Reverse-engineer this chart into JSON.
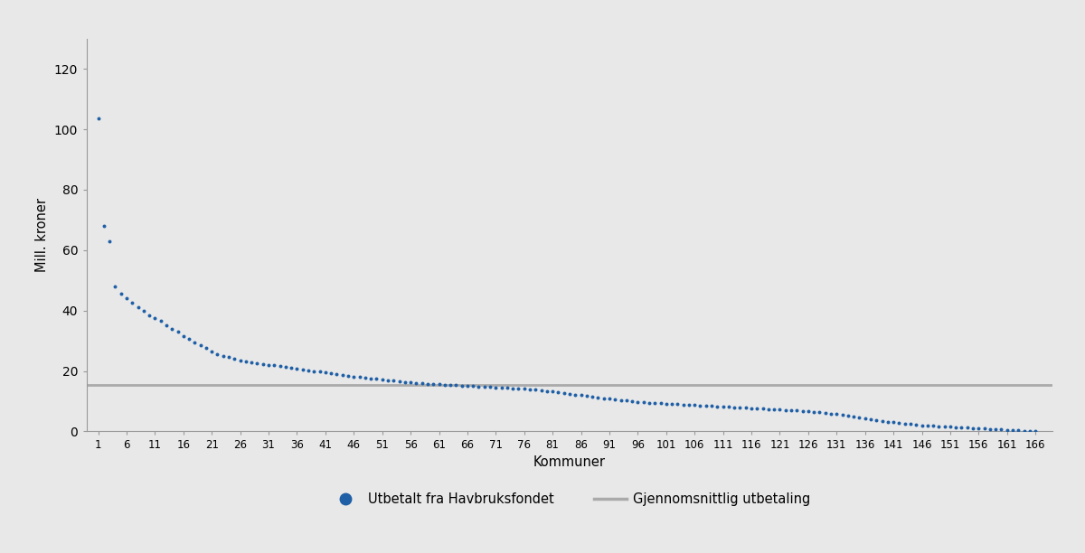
{
  "xlabel": "Kommuner",
  "ylabel": "Mill. kroner",
  "dot_color": "#1f5fa6",
  "line_color": "#aaaaaa",
  "avg_value": 15.3,
  "background_color": "#e8e8e8",
  "ylim": [
    0,
    130
  ],
  "yticks": [
    0,
    20,
    40,
    60,
    80,
    100,
    120
  ],
  "xtick_step": 5,
  "legend_dot_label": "Utbetalt fra Havbruksfondet",
  "legend_line_label": "Gjennomsnittlig utbetaling",
  "values": [
    103.5,
    68.0,
    63.0,
    48.0,
    45.5,
    44.0,
    42.5,
    41.0,
    40.0,
    38.5,
    37.5,
    36.5,
    35.0,
    34.0,
    33.0,
    31.5,
    30.5,
    29.5,
    28.5,
    27.5,
    26.5,
    25.5,
    25.0,
    24.5,
    24.0,
    23.5,
    23.0,
    22.8,
    22.5,
    22.2,
    22.0,
    21.8,
    21.5,
    21.2,
    21.0,
    20.8,
    20.5,
    20.2,
    20.0,
    19.8,
    19.5,
    19.2,
    19.0,
    18.8,
    18.5,
    18.2,
    18.0,
    17.8,
    17.6,
    17.4,
    17.2,
    17.0,
    16.8,
    16.6,
    16.4,
    16.2,
    16.0,
    15.9,
    15.8,
    15.7,
    15.6,
    15.5,
    15.4,
    15.3,
    15.2,
    15.1,
    15.0,
    14.9,
    14.8,
    14.7,
    14.6,
    14.5,
    14.4,
    14.3,
    14.2,
    14.1,
    14.0,
    13.8,
    13.6,
    13.4,
    13.2,
    13.0,
    12.8,
    12.5,
    12.2,
    12.0,
    11.8,
    11.5,
    11.2,
    11.0,
    10.8,
    10.6,
    10.4,
    10.2,
    10.0,
    9.8,
    9.6,
    9.5,
    9.4,
    9.3,
    9.2,
    9.1,
    9.0,
    8.9,
    8.8,
    8.7,
    8.6,
    8.5,
    8.4,
    8.3,
    8.2,
    8.1,
    8.0,
    7.9,
    7.8,
    7.7,
    7.6,
    7.5,
    7.4,
    7.3,
    7.2,
    7.1,
    7.0,
    6.9,
    6.8,
    6.7,
    6.5,
    6.3,
    6.1,
    5.9,
    5.7,
    5.5,
    5.3,
    5.0,
    4.7,
    4.4,
    4.1,
    3.8,
    3.5,
    3.2,
    3.0,
    2.8,
    2.6,
    2.4,
    2.2,
    2.0,
    1.9,
    1.8,
    1.7,
    1.6,
    1.5,
    1.4,
    1.3,
    1.2,
    1.1,
    1.0,
    0.9,
    0.8,
    0.7,
    0.6,
    0.5,
    0.4,
    0.3,
    0.2,
    0.15,
    0.1
  ]
}
